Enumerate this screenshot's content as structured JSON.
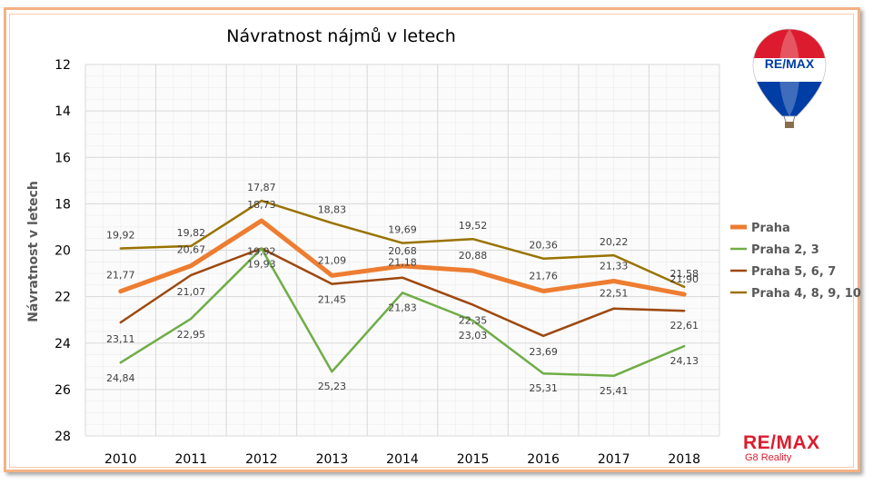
{
  "chart_data": {
    "type": "line",
    "title": "Návratnost nájmů v letech",
    "xlabel": "",
    "ylabel": "Návratnost v letech",
    "categories": [
      "2010",
      "2011",
      "2012",
      "2013",
      "2014",
      "2015",
      "2016",
      "2017",
      "2018"
    ],
    "ylim": [
      12,
      28
    ],
    "y_inverted": true,
    "yticks": [
      12,
      14,
      16,
      18,
      20,
      22,
      24,
      26,
      28
    ],
    "grid": true,
    "legend_position": "right",
    "series": [
      {
        "name": "Praha",
        "color": "#ed7d31",
        "values": [
          21.77,
          20.67,
          18.73,
          21.09,
          20.68,
          20.88,
          21.76,
          21.33,
          21.9
        ],
        "labels": [
          "21,77",
          "20,67",
          "18,73",
          "21,09",
          "20,68",
          "20,88",
          "21,76",
          "21,33",
          "21,90"
        ]
      },
      {
        "name": "Praha 2, 3",
        "color": "#70ad47",
        "values": [
          24.84,
          22.95,
          19.93,
          25.23,
          21.83,
          23.03,
          25.31,
          25.41,
          24.13
        ],
        "labels": [
          "24,84",
          "22,95",
          "19,93",
          "25,23",
          "21,83",
          "23,03",
          "25,31",
          "25,41",
          "24,13"
        ]
      },
      {
        "name": "Praha 5, 6, 7",
        "color": "#9e480e",
        "values": [
          23.11,
          21.07,
          19.92,
          21.45,
          21.18,
          22.35,
          23.69,
          22.51,
          22.61
        ],
        "labels": [
          "23,11",
          "21,07",
          "19,92",
          "21,45",
          "21,18",
          "22,35",
          "23,69",
          "22,51",
          "22,61"
        ]
      },
      {
        "name": "Praha 4, 8, 9, 10",
        "color": "#997300",
        "values": [
          19.92,
          19.82,
          17.87,
          18.83,
          19.69,
          19.52,
          20.36,
          20.22,
          21.58
        ],
        "labels": [
          "19,92",
          "19,82",
          "17,87",
          "18,83",
          "19,69",
          "19,52",
          "20,36",
          "20,22",
          "21,58"
        ]
      }
    ]
  },
  "logo": {
    "balloon_text": "RE/MAX",
    "brand": "RE/MAX",
    "office": "G8 Reality"
  }
}
